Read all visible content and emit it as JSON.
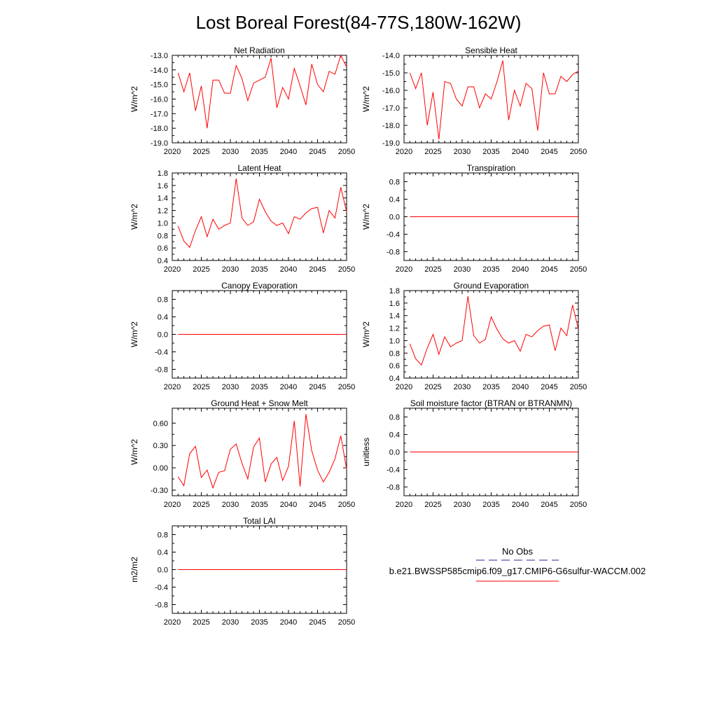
{
  "title": "Lost Boreal Forest(84-77S,180W-162W)",
  "legend": {
    "obs_label": "No Obs",
    "model_label": "b.e21.BWSSP585cmip6.f09_g17.CMIP6-G6sulfur-WACCM.002",
    "obs_color": "#2a2a9a",
    "model_color": "#ff0000"
  },
  "chart_data": [
    {
      "type": "line",
      "title": "Net Radiation",
      "ylabel": "W/m^2",
      "xlim": [
        2020,
        2050
      ],
      "ylim": [
        -19.0,
        -13.0
      ],
      "xticks": [
        "2020",
        "2025",
        "2030",
        "2035",
        "2040",
        "2045",
        "2050"
      ],
      "yticks": [
        "-19.0",
        "-18.0",
        "-17.0",
        "-16.0",
        "-15.0",
        "-14.0",
        "-13.0"
      ],
      "x": [
        2021,
        2022,
        2023,
        2024,
        2025,
        2026,
        2027,
        2028,
        2029,
        2030,
        2031,
        2032,
        2033,
        2034,
        2035,
        2036,
        2037,
        2038,
        2039,
        2040,
        2041,
        2042,
        2043,
        2044,
        2045,
        2046,
        2047,
        2048,
        2049,
        2050
      ],
      "series": [
        {
          "color": "#ff0000",
          "values": [
            -14.2,
            -15.5,
            -14.2,
            -16.8,
            -15.1,
            -18.0,
            -14.7,
            -14.7,
            -15.6,
            -15.6,
            -13.7,
            -14.6,
            -16.1,
            -14.9,
            -14.7,
            -14.5,
            -13.2,
            -16.6,
            -15.2,
            -16.0,
            -13.9,
            -15.1,
            -16.4,
            -13.6,
            -15.0,
            -15.5,
            -14.1,
            -14.3,
            -13.0,
            -13.8
          ]
        }
      ]
    },
    {
      "type": "line",
      "title": "Sensible Heat",
      "ylabel": "W/m^2",
      "xlim": [
        2020,
        2050
      ],
      "ylim": [
        -19.0,
        -14.0
      ],
      "xticks": [
        "2020",
        "2025",
        "2030",
        "2035",
        "2040",
        "2045",
        "2050"
      ],
      "yticks": [
        "-19.0",
        "-18.0",
        "-17.0",
        "-16.0",
        "-15.0",
        "-14.0"
      ],
      "x": [
        2021,
        2022,
        2023,
        2024,
        2025,
        2026,
        2027,
        2028,
        2029,
        2030,
        2031,
        2032,
        2033,
        2034,
        2035,
        2036,
        2037,
        2038,
        2039,
        2040,
        2041,
        2042,
        2043,
        2044,
        2045,
        2046,
        2047,
        2048,
        2049,
        2050
      ],
      "series": [
        {
          "color": "#ff0000",
          "values": [
            -15.0,
            -15.9,
            -15.0,
            -18.0,
            -16.1,
            -18.8,
            -15.5,
            -15.6,
            -16.5,
            -16.9,
            -15.8,
            -15.8,
            -17.0,
            -16.2,
            -16.5,
            -15.5,
            -14.3,
            -17.7,
            -16.0,
            -16.9,
            -15.6,
            -15.9,
            -18.3,
            -15.0,
            -16.2,
            -16.2,
            -15.2,
            -15.5,
            -15.1,
            -14.9
          ]
        }
      ]
    },
    {
      "type": "line",
      "title": "Latent Heat",
      "ylabel": "W/m^2",
      "xlim": [
        2020,
        2050
      ],
      "ylim": [
        0.4,
        1.8
      ],
      "xticks": [
        "2020",
        "2025",
        "2030",
        "2035",
        "2040",
        "2045",
        "2050"
      ],
      "yticks": [
        "0.4",
        "0.6",
        "0.8",
        "1.0",
        "1.2",
        "1.4",
        "1.6",
        "1.8"
      ],
      "x": [
        2021,
        2022,
        2023,
        2024,
        2025,
        2026,
        2027,
        2028,
        2029,
        2030,
        2031,
        2032,
        2033,
        2034,
        2035,
        2036,
        2037,
        2038,
        2039,
        2040,
        2041,
        2042,
        2043,
        2044,
        2045,
        2046,
        2047,
        2048,
        2049,
        2050
      ],
      "series": [
        {
          "color": "#ff0000",
          "values": [
            0.95,
            0.71,
            0.61,
            0.88,
            1.1,
            0.78,
            1.06,
            0.9,
            0.96,
            1.0,
            1.71,
            1.08,
            0.96,
            1.02,
            1.38,
            1.18,
            1.03,
            0.96,
            1.0,
            0.83,
            1.1,
            1.06,
            1.16,
            1.23,
            1.25,
            0.84,
            1.2,
            1.08,
            1.57,
            1.18
          ]
        }
      ]
    },
    {
      "type": "line",
      "title": "Transpiration",
      "ylabel": "W/m^2",
      "xlim": [
        2020,
        2050
      ],
      "ylim": [
        -1.0,
        1.0
      ],
      "xticks": [
        "2020",
        "2025",
        "2030",
        "2035",
        "2040",
        "2045",
        "2050"
      ],
      "yticks": [
        "-0.8",
        "-0.4",
        "0.0",
        "0.4",
        "0.8"
      ],
      "ytick_values": [
        -0.8,
        -0.4,
        0.0,
        0.4,
        0.8
      ],
      "x": [
        2021,
        2050
      ],
      "series": [
        {
          "color": "#ff0000",
          "values": [
            0.0,
            0.0
          ]
        }
      ]
    },
    {
      "type": "line",
      "title": "Canopy Evaporation",
      "ylabel": "W/m^2",
      "xlim": [
        2020,
        2050
      ],
      "ylim": [
        -1.0,
        1.0
      ],
      "xticks": [
        "2020",
        "2025",
        "2030",
        "2035",
        "2040",
        "2045",
        "2050"
      ],
      "yticks": [
        "-0.8",
        "-0.4",
        "0.0",
        "0.4",
        "0.8"
      ],
      "ytick_values": [
        -0.8,
        -0.4,
        0.0,
        0.4,
        0.8
      ],
      "x": [
        2021,
        2050
      ],
      "series": [
        {
          "color": "#ff0000",
          "values": [
            0.0,
            0.0
          ]
        }
      ]
    },
    {
      "type": "line",
      "title": "Ground Evaporation",
      "ylabel": "W/m^2",
      "xlim": [
        2020,
        2050
      ],
      "ylim": [
        0.4,
        1.8
      ],
      "xticks": [
        "2020",
        "2025",
        "2030",
        "2035",
        "2040",
        "2045",
        "2050"
      ],
      "yticks": [
        "0.4",
        "0.6",
        "0.8",
        "1.0",
        "1.2",
        "1.4",
        "1.6",
        "1.8"
      ],
      "x": [
        2021,
        2022,
        2023,
        2024,
        2025,
        2026,
        2027,
        2028,
        2029,
        2030,
        2031,
        2032,
        2033,
        2034,
        2035,
        2036,
        2037,
        2038,
        2039,
        2040,
        2041,
        2042,
        2043,
        2044,
        2045,
        2046,
        2047,
        2048,
        2049,
        2050
      ],
      "series": [
        {
          "color": "#ff0000",
          "values": [
            0.95,
            0.71,
            0.61,
            0.88,
            1.1,
            0.78,
            1.06,
            0.9,
            0.96,
            1.0,
            1.71,
            1.08,
            0.96,
            1.02,
            1.38,
            1.18,
            1.03,
            0.96,
            1.0,
            0.83,
            1.1,
            1.06,
            1.16,
            1.23,
            1.25,
            0.84,
            1.2,
            1.08,
            1.57,
            1.18
          ]
        }
      ]
    },
    {
      "type": "line",
      "title": "Ground Heat + Snow Melt",
      "ylabel": "W/m^2",
      "xlim": [
        2020,
        2050
      ],
      "ylim": [
        -0.375,
        0.8
      ],
      "xticks": [
        "2020",
        "2025",
        "2030",
        "2035",
        "2040",
        "2045",
        "2050"
      ],
      "yticks": [
        "-0.30",
        "0.00",
        "0.30",
        "0.60"
      ],
      "ytick_values": [
        -0.3,
        0.0,
        0.3,
        0.6
      ],
      "x": [
        2021,
        2022,
        2023,
        2024,
        2025,
        2026,
        2027,
        2028,
        2029,
        2030,
        2031,
        2032,
        2033,
        2034,
        2035,
        2036,
        2037,
        2038,
        2039,
        2040,
        2041,
        2042,
        2043,
        2044,
        2045,
        2046,
        2047,
        2048,
        2049,
        2050
      ],
      "series": [
        {
          "color": "#ff0000",
          "values": [
            -0.12,
            -0.24,
            0.19,
            0.29,
            -0.13,
            -0.03,
            -0.27,
            -0.06,
            -0.04,
            0.25,
            0.32,
            0.06,
            -0.15,
            0.28,
            0.4,
            -0.19,
            0.05,
            0.14,
            -0.17,
            0.02,
            0.63,
            -0.25,
            0.72,
            0.23,
            -0.03,
            -0.19,
            -0.06,
            0.12,
            0.43,
            -0.02
          ]
        }
      ]
    },
    {
      "type": "line",
      "title": "Soil moisture factor (BTRAN or BTRANMN)",
      "ylabel": "unitless",
      "xlim": [
        2020,
        2050
      ],
      "ylim": [
        -1.0,
        1.0
      ],
      "xticks": [
        "2020",
        "2025",
        "2030",
        "2035",
        "2040",
        "2045",
        "2050"
      ],
      "yticks": [
        "-0.8",
        "-0.4",
        "0.0",
        "0.4",
        "0.8"
      ],
      "ytick_values": [
        -0.8,
        -0.4,
        0.0,
        0.4,
        0.8
      ],
      "x": [
        2021,
        2050
      ],
      "series": [
        {
          "color": "#ff0000",
          "values": [
            0.0,
            0.0
          ]
        }
      ]
    },
    {
      "type": "line",
      "title": "Total LAI",
      "ylabel": "m2/m2",
      "xlim": [
        2020,
        2050
      ],
      "ylim": [
        -1.0,
        1.0
      ],
      "xticks": [
        "2020",
        "2025",
        "2030",
        "2035",
        "2040",
        "2045",
        "2050"
      ],
      "yticks": [
        "-0.8",
        "-0.4",
        "0.0",
        "0.4",
        "0.8"
      ],
      "ytick_values": [
        -0.8,
        -0.4,
        0.0,
        0.4,
        0.8
      ],
      "x": [
        2021,
        2050
      ],
      "series": [
        {
          "color": "#ff0000",
          "values": [
            0.0,
            0.0
          ]
        }
      ]
    }
  ]
}
